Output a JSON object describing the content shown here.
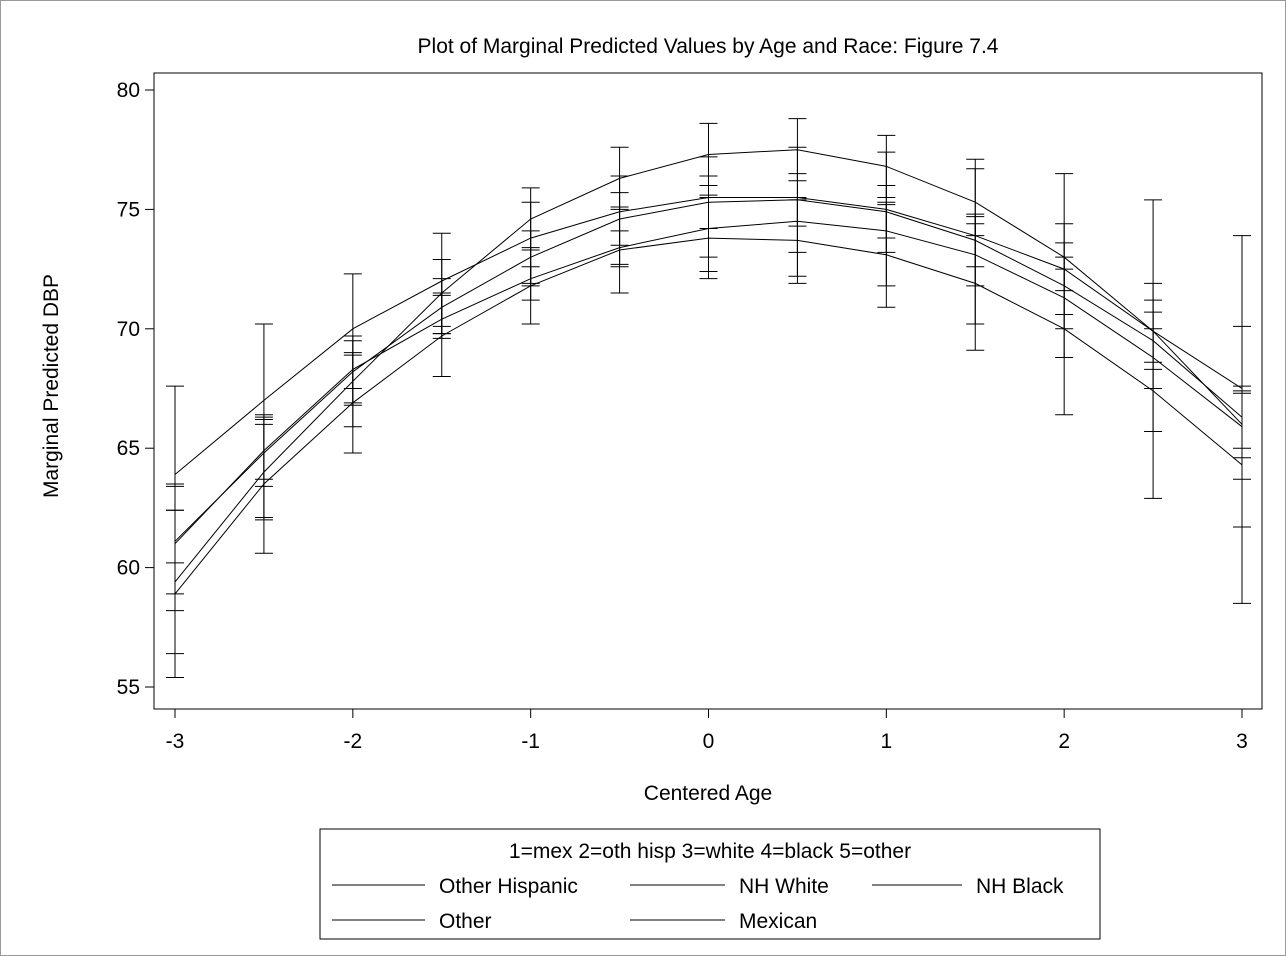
{
  "chart_data": {
    "type": "line",
    "title": "Plot of Marginal Predicted Values by Age and Race: Figure 7.4",
    "xlabel": "Centered Age",
    "ylabel": "Marginal Predicted DBP",
    "xlim": [
      -3,
      3
    ],
    "ylim": [
      55,
      80
    ],
    "x_ticks": [
      -3,
      -2,
      -1,
      0,
      1,
      2,
      3
    ],
    "y_ticks": [
      55,
      60,
      65,
      70,
      75,
      80
    ],
    "grid": false,
    "x": [
      -3,
      -2.5,
      -2,
      -1.5,
      -1,
      -0.5,
      0,
      0.5,
      1,
      1.5,
      2,
      2.5,
      3
    ],
    "series": [
      {
        "name": "Other Hispanic",
        "values": [
          63.9,
          67.0,
          70.0,
          72.0,
          73.8,
          74.9,
          75.5,
          75.5,
          75.0,
          73.9,
          72.5,
          69.9,
          67.5
        ],
        "lower": [
          60.2,
          63.7,
          67.5,
          69.8,
          71.8,
          72.7,
          72.4,
          72.2,
          71.8,
          70.2,
          68.8,
          65.7,
          61.7
        ],
        "upper": [
          67.6,
          70.2,
          72.3,
          74.0,
          75.3,
          76.4,
          77.2,
          77.6,
          77.4,
          77.1,
          76.5,
          75.4,
          73.9
        ]
      },
      {
        "name": "NH White",
        "values": [
          61.0,
          64.9,
          68.3,
          70.4,
          72.1,
          73.4,
          74.2,
          74.5,
          74.1,
          73.1,
          71.3,
          68.8,
          65.9
        ],
        "lower": [
          58.2,
          62.1,
          66.8,
          69.6,
          71.2,
          72.6,
          73.0,
          73.2,
          73.2,
          71.8,
          70.0,
          67.5,
          63.7
        ],
        "upper": [
          63.4,
          66.3,
          68.9,
          71.5,
          72.6,
          74.1,
          75.6,
          75.4,
          75.2,
          74.4,
          72.5,
          70.0,
          67.3
        ]
      },
      {
        "name": "NH Black",
        "values": [
          61.1,
          64.8,
          68.2,
          70.9,
          73.0,
          74.6,
          75.3,
          75.4,
          74.9,
          73.7,
          71.8,
          69.5,
          66.3
        ],
        "lower": [
          58.9,
          63.4,
          66.9,
          69.8,
          71.9,
          73.5,
          74.2,
          74.3,
          73.8,
          72.6,
          70.6,
          68.3,
          65.0
        ],
        "upper": [
          63.5,
          66.2,
          69.5,
          72.1,
          74.1,
          75.7,
          76.4,
          76.5,
          76.0,
          74.8,
          73.0,
          70.7,
          67.6
        ]
      },
      {
        "name": "Other",
        "values": [
          59.4,
          64.0,
          67.8,
          71.5,
          74.6,
          76.3,
          77.3,
          77.5,
          76.8,
          75.3,
          73.0,
          69.9,
          66.0
        ],
        "lower": [
          56.4,
          62.0,
          65.9,
          70.1,
          73.3,
          75.0,
          76.0,
          76.2,
          75.5,
          73.9,
          71.6,
          68.6,
          64.6
        ],
        "upper": [
          62.4,
          66.0,
          69.7,
          72.9,
          75.9,
          77.6,
          78.6,
          78.8,
          78.1,
          76.7,
          74.4,
          71.2,
          67.4
        ]
      },
      {
        "name": "Mexican",
        "values": [
          58.9,
          63.5,
          66.9,
          69.7,
          71.8,
          73.3,
          73.8,
          73.7,
          73.1,
          71.9,
          70.0,
          67.4,
          64.3
        ],
        "lower": [
          55.4,
          60.6,
          64.8,
          68.0,
          70.2,
          71.5,
          72.1,
          71.9,
          70.9,
          69.1,
          66.4,
          62.9,
          58.5
        ],
        "upper": [
          62.4,
          66.4,
          69.0,
          71.4,
          73.4,
          75.1,
          75.5,
          75.5,
          75.3,
          74.7,
          73.6,
          71.9,
          70.1
        ]
      }
    ],
    "legend": {
      "title": "1=mex 2=oth hisp 3=white 4=black 5=other",
      "placement": "bottom",
      "entries": [
        "Other Hispanic",
        "NH White",
        "NH Black",
        "Other",
        "Mexican"
      ]
    },
    "colors": {
      "line": "#000000",
      "axis": "#000000",
      "frame": "#9a9a9a"
    }
  }
}
